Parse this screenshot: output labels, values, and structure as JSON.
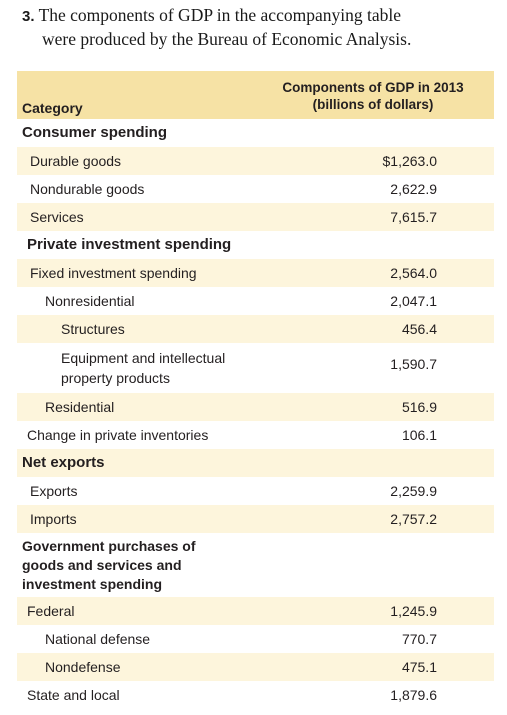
{
  "question": {
    "number": "3.",
    "line1": "The components of GDP in the accompanying table",
    "line2": "were produced by the Bureau of Economic Analysis."
  },
  "table": {
    "header": {
      "category": "Category",
      "column_line1": "Components of GDP in 2013",
      "column_line2": "(billions of dollars)"
    },
    "rows": [
      {
        "label": "Consumer spending",
        "value": ""
      },
      {
        "label": "Durable goods",
        "value": "$1,263.0"
      },
      {
        "label": "Nondurable goods",
        "value": "2,622.9"
      },
      {
        "label": "Services",
        "value": "7,615.7"
      },
      {
        "label": "Private investment spending",
        "value": ""
      },
      {
        "label": "Fixed investment spending",
        "value": "2,564.0"
      },
      {
        "label": "Nonresidential",
        "value": "2,047.1"
      },
      {
        "label": "Structures",
        "value": "456.4"
      },
      {
        "label_line1": "Equipment and intellectual",
        "label_line2": "property products",
        "value": "1,590.7"
      },
      {
        "label": "Residential",
        "value": "516.9"
      },
      {
        "label": "Change in private inventories",
        "value": "106.1"
      },
      {
        "label": "Net exports",
        "value": ""
      },
      {
        "label": "Exports",
        "value": "2,259.9"
      },
      {
        "label": "Imports",
        "value": "2,757.2"
      },
      {
        "label_line1": "Government purchases of",
        "label_line2": "goods and services and",
        "label_line3": "investment spending",
        "value": ""
      },
      {
        "label": "Federal",
        "value": "1,245.9"
      },
      {
        "label": "National defense",
        "value": "770.7"
      },
      {
        "label": "Nondefense",
        "value": "475.1"
      },
      {
        "label": "State and local",
        "value": "1,879.6"
      }
    ]
  }
}
